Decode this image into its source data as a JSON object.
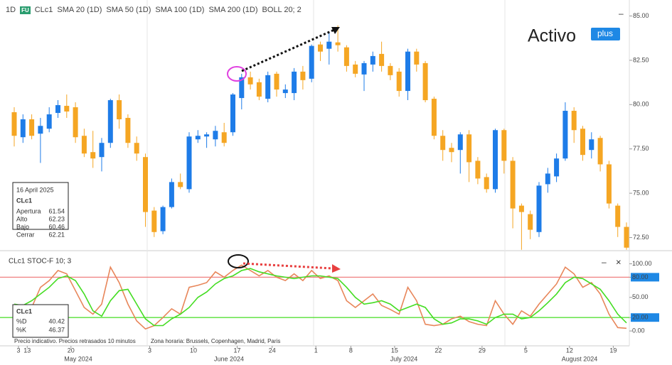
{
  "header": {
    "interval": "1D",
    "badge": "FU",
    "symbol": "CLc1",
    "indicators": [
      "SMA 20 (1D)",
      "SMA 50 (1D)",
      "SMA 100 (1D)",
      "SMA 200 (1D)",
      "BOLL 20; 2"
    ]
  },
  "logo": {
    "name": "Activo",
    "tag": "plus"
  },
  "info_box": {
    "date": "16 April 2025",
    "symbol": "CLc1",
    "rows": [
      [
        "Apertura",
        "61.54"
      ],
      [
        "Alto",
        "62.23"
      ],
      [
        "Bajo",
        "60.46"
      ],
      [
        "Cerrar",
        "62.21"
      ]
    ]
  },
  "stoch_box": {
    "symbol": "CLc1",
    "rows": [
      [
        "%D",
        "40.42"
      ],
      [
        "%K",
        "46.37"
      ]
    ]
  },
  "footer": {
    "notice": "Precio indicativo. Precios retrasados 10 minutos",
    "timezone": "Zona horaria: Brussels, Copenhagen, Madrid, Paris"
  },
  "months": [
    "May 2024",
    "June 2024",
    "July 2024",
    "August 2024"
  ],
  "chart_data": [
    {
      "type": "candlestick",
      "up_color": "#1e7ce8",
      "down_color": "#f5a623",
      "ylim": [
        71.8,
        85.5
      ],
      "yticks": [
        {
          "value": 72.5,
          "label": "72.50"
        },
        {
          "value": 75,
          "label": "75.00"
        },
        {
          "value": 77.5,
          "label": "77.50"
        },
        {
          "value": 80,
          "label": "80.00"
        },
        {
          "value": 82.5,
          "label": "82.50"
        },
        {
          "value": 85,
          "label": "85.00"
        }
      ],
      "open": [
        79.57,
        78.16,
        79.17,
        78.36,
        78.64,
        79.53,
        79.93,
        79.85,
        78.24,
        77.32,
        77.04,
        77.84,
        80.25,
        79.25,
        77.84,
        77.04,
        74.02,
        72.86,
        74.22,
        75.63,
        75.23,
        78.04,
        78.2,
        78.04,
        78.44,
        78.44,
        80.37,
        81.54,
        81.26,
        80.33,
        81.74,
        80.65,
        80.65,
        81.86,
        81.46,
        83.39,
        83.15,
        83.51,
        83.23,
        82.26,
        81.7,
        82.26,
        82.86,
        82.18,
        81.86,
        80.77,
        82.99,
        82.34,
        80.33,
        78.24,
        77.56,
        77.44,
        78.32,
        76.83,
        75.91,
        75.23,
        78.56,
        76.83,
        74.3,
        73.82,
        72.81,
        75.51,
        75.95,
        76.96,
        79.65,
        78.64,
        77.44,
        78.12,
        76.63,
        74.3,
        73.1
      ],
      "high": [
        79.85,
        79.45,
        79.45,
        79.25,
        79.85,
        80.25,
        80.57,
        80.13,
        78.64,
        78.52,
        78.12,
        80.33,
        80.57,
        79.45,
        78.2,
        77.24,
        74.22,
        74.3,
        75.83,
        76.11,
        78.44,
        78.56,
        78.44,
        78.8,
        78.97,
        80.65,
        81.74,
        81.86,
        81.46,
        81.86,
        81.86,
        81.14,
        82.06,
        82.18,
        83.39,
        83.55,
        84.07,
        84.47,
        83.35,
        82.46,
        82.46,
        82.99,
        83.55,
        82.34,
        82.06,
        83.15,
        83.15,
        82.46,
        80.45,
        78.56,
        77.84,
        78.44,
        78.56,
        77.04,
        76.11,
        78.64,
        78.64,
        77.04,
        74.42,
        74.02,
        75.63,
        76.43,
        77.24,
        80.13,
        79.85,
        78.8,
        78.44,
        78.24,
        76.83,
        74.42,
        73.35
      ],
      "low": [
        77.64,
        77.84,
        78.04,
        76.71,
        78.44,
        79.25,
        79.25,
        77.84,
        77.04,
        76.43,
        76.23,
        77.56,
        78.64,
        77.56,
        76.83,
        73.1,
        72.53,
        72.69,
        74.14,
        75.23,
        75.03,
        77.84,
        77.56,
        77.64,
        77.64,
        78.24,
        79.73,
        80.85,
        80.25,
        80.13,
        80.45,
        80.37,
        80.25,
        80.85,
        81.26,
        82.46,
        82.26,
        82.99,
        81.86,
        81.54,
        80.77,
        81.86,
        81.86,
        81.38,
        80.45,
        80.25,
        81.86,
        80.13,
        78.04,
        76.83,
        76.75,
        76.11,
        75.63,
        75.51,
        75.03,
        75.03,
        76.11,
        73.02,
        71.81,
        72.41,
        72.53,
        75.03,
        75.63,
        76.83,
        77.84,
        76.83,
        76.96,
        76.23,
        74.14,
        72.53,
        71.81
      ],
      "close": [
        78.24,
        79.17,
        78.24,
        78.8,
        79.45,
        79.97,
        79.61,
        78.16,
        77.24,
        76.96,
        77.84,
        80.25,
        79.17,
        77.84,
        77.24,
        73.94,
        72.81,
        74.22,
        75.63,
        75.35,
        78.2,
        78.24,
        78.32,
        78.52,
        77.84,
        80.57,
        81.54,
        81.14,
        80.45,
        81.66,
        80.85,
        80.85,
        81.86,
        81.38,
        83.31,
        82.99,
        83.55,
        83.35,
        82.18,
        81.74,
        82.34,
        82.74,
        82.18,
        81.66,
        80.77,
        82.99,
        82.26,
        80.25,
        78.24,
        77.44,
        77.32,
        78.32,
        76.75,
        75.83,
        75.23,
        78.56,
        76.83,
        74.14,
        73.94,
        72.94,
        75.43,
        76.11,
        76.96,
        79.65,
        78.56,
        77.16,
        78.04,
        76.63,
        74.42,
        73.1,
        71.93
      ]
    },
    {
      "type": "line",
      "title": "CLc1 STOC-F 10; 3",
      "categories": [
        "3",
        "13",
        null,
        null,
        null,
        null,
        "20",
        null,
        null,
        null,
        null,
        null,
        null,
        null,
        null,
        "3",
        null,
        null,
        null,
        null,
        "10",
        null,
        null,
        null,
        null,
        "17",
        null,
        null,
        null,
        "24",
        null,
        null,
        null,
        null,
        "1",
        null,
        null,
        null,
        "8",
        null,
        null,
        null,
        null,
        "15",
        null,
        null,
        null,
        null,
        "22",
        null,
        null,
        null,
        null,
        "29",
        null,
        null,
        null,
        null,
        "5",
        null,
        null,
        null,
        null,
        "12",
        null,
        null,
        null,
        null,
        "19",
        null,
        null
      ],
      "ylim": [
        -20,
        110
      ],
      "yticks": [
        {
          "value": 0,
          "label": "0.00"
        },
        {
          "value": 20,
          "label": "20.00"
        },
        {
          "value": 50,
          "label": "50.00"
        },
        {
          "value": 80,
          "label": "80.00"
        },
        {
          "value": 100,
          "label": "100.00"
        }
      ],
      "reference_lines": [
        {
          "value": 80,
          "color": "#f08080"
        },
        {
          "value": 20,
          "color": "#44dd22"
        }
      ],
      "series": [
        {
          "name": "%K",
          "color": "#e8865a",
          "values": [
            35,
            30,
            35,
            65,
            75,
            90,
            85,
            60,
            35,
            25,
            40,
            95,
            72,
            40,
            15,
            3,
            8,
            20,
            33,
            25,
            65,
            68,
            72,
            88,
            80,
            90,
            98,
            90,
            82,
            90,
            80,
            75,
            85,
            75,
            90,
            78,
            82,
            75,
            45,
            35,
            45,
            55,
            38,
            32,
            25,
            65,
            45,
            10,
            8,
            10,
            18,
            22,
            14,
            10,
            8,
            45,
            25,
            10,
            30,
            22,
            40,
            55,
            70,
            95,
            85,
            65,
            72,
            55,
            25,
            5,
            4
          ]
        },
        {
          "name": "%D",
          "color": "#44dd22",
          "values": [
            40,
            38,
            45,
            55,
            65,
            78,
            82,
            75,
            55,
            30,
            22,
            45,
            60,
            62,
            40,
            18,
            8,
            8,
            18,
            25,
            35,
            50,
            58,
            70,
            78,
            82,
            90,
            93,
            88,
            85,
            82,
            80,
            78,
            80,
            82,
            82,
            80,
            78,
            65,
            50,
            40,
            42,
            45,
            40,
            30,
            35,
            40,
            35,
            18,
            10,
            12,
            18,
            18,
            15,
            10,
            20,
            25,
            25,
            18,
            20,
            30,
            42,
            55,
            72,
            80,
            78,
            70,
            62,
            45,
            25,
            12
          ]
        }
      ]
    }
  ]
}
